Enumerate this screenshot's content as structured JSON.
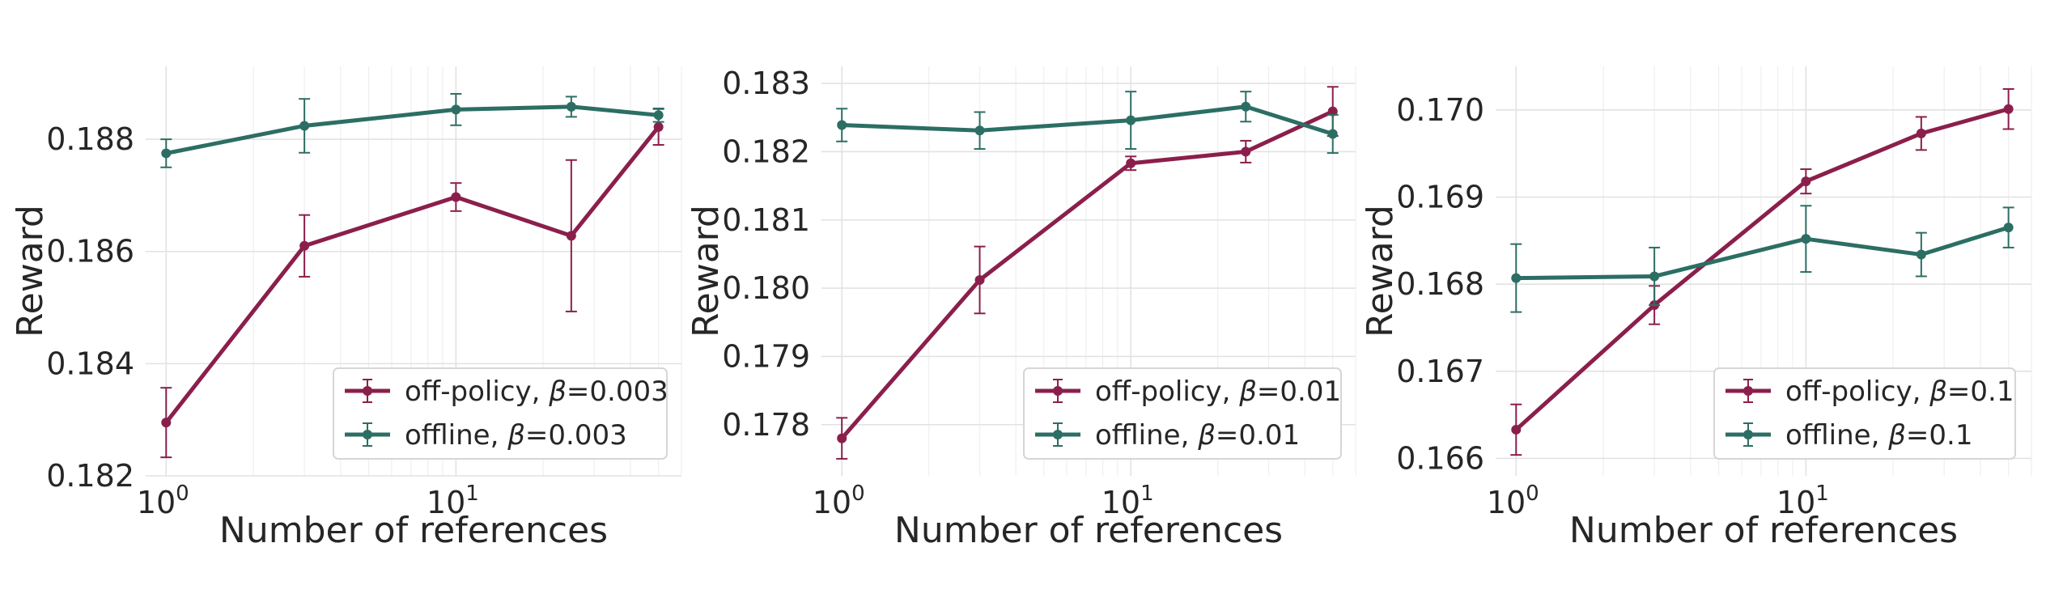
{
  "colors": {
    "off_policy": "#8b1f4c",
    "offline": "#2c6e63"
  },
  "chart_data": [
    {
      "type": "line",
      "xlabel": "Number of references",
      "ylabel": "Reward",
      "xscale": "log",
      "xlim": [
        0.85,
        60
      ],
      "ylim": [
        0.182,
        0.1893
      ],
      "yticks": [
        "0.182",
        "0.184",
        "0.186",
        "0.188"
      ],
      "xticks": [
        {
          "value": 1,
          "base": "10",
          "exp": "0"
        },
        {
          "value": 10,
          "base": "10",
          "exp": "1"
        }
      ],
      "grid": true,
      "legend_position": "lower-right",
      "x": [
        1,
        3,
        10,
        25,
        50
      ],
      "series": [
        {
          "key": "off_policy",
          "name": "off-policy, ",
          "beta": "β",
          "suffix": "=0.003",
          "values": [
            0.18295,
            0.1861,
            0.18697,
            0.18628,
            0.18822
          ],
          "errors": [
            0.00062,
            0.00055,
            0.00025,
            0.00135,
            0.00032
          ]
        },
        {
          "key": "offline",
          "name": "offline, ",
          "beta": "β",
          "suffix": "=0.003",
          "values": [
            0.18775,
            0.18824,
            0.18853,
            0.18858,
            0.18843
          ],
          "errors": [
            0.00025,
            0.00048,
            0.00028,
            0.00018,
            0.00012
          ]
        }
      ]
    },
    {
      "type": "line",
      "xlabel": "Number of references",
      "ylabel": "Reward",
      "xscale": "log",
      "xlim": [
        0.85,
        60
      ],
      "ylim": [
        0.17725,
        0.18325
      ],
      "yticks": [
        "0.178",
        "0.179",
        "0.180",
        "0.181",
        "0.182",
        "0.183"
      ],
      "xticks": [
        {
          "value": 1,
          "base": "10",
          "exp": "0"
        },
        {
          "value": 10,
          "base": "10",
          "exp": "1"
        }
      ],
      "grid": true,
      "legend_position": "lower-right",
      "x": [
        1,
        3,
        10,
        25,
        50
      ],
      "series": [
        {
          "key": "off_policy",
          "name": "off-policy, ",
          "beta": "β",
          "suffix": "=0.01",
          "values": [
            0.1778,
            0.18012,
            0.18183,
            0.182,
            0.18259
          ],
          "errors": [
            0.0003,
            0.00049,
            0.0001,
            0.00016,
            0.00036
          ]
        },
        {
          "key": "offline",
          "name": "offline, ",
          "beta": "β",
          "suffix": "=0.01",
          "values": [
            0.18239,
            0.18231,
            0.18246,
            0.18266,
            0.18226
          ],
          "errors": [
            0.00024,
            0.00027,
            0.00042,
            0.00022,
            0.00028
          ]
        }
      ]
    },
    {
      "type": "line",
      "xlabel": "Number of references",
      "ylabel": "Reward",
      "xscale": "log",
      "xlim": [
        0.85,
        60
      ],
      "ylim": [
        0.1658,
        0.1705
      ],
      "yticks": [
        "0.166",
        "0.167",
        "0.168",
        "0.169",
        "0.170"
      ],
      "xticks": [
        {
          "value": 1,
          "base": "10",
          "exp": "0"
        },
        {
          "value": 10,
          "base": "10",
          "exp": "1"
        }
      ],
      "grid": true,
      "legend_position": "lower-right",
      "x": [
        1,
        3,
        10,
        25,
        50
      ],
      "series": [
        {
          "key": "off_policy",
          "name": "off-policy, ",
          "beta": "β",
          "suffix": "=0.1",
          "values": [
            0.16633,
            0.16776,
            0.16918,
            0.16973,
            0.17001
          ],
          "errors": [
            0.00029,
            0.00022,
            0.00014,
            0.00019,
            0.00023
          ]
        },
        {
          "key": "offline",
          "name": "offline, ",
          "beta": "β",
          "suffix": "=0.1",
          "values": [
            0.16807,
            0.16809,
            0.16852,
            0.16834,
            0.16865
          ],
          "errors": [
            0.00039,
            0.00033,
            0.00038,
            0.00025,
            0.00023
          ]
        }
      ]
    }
  ]
}
